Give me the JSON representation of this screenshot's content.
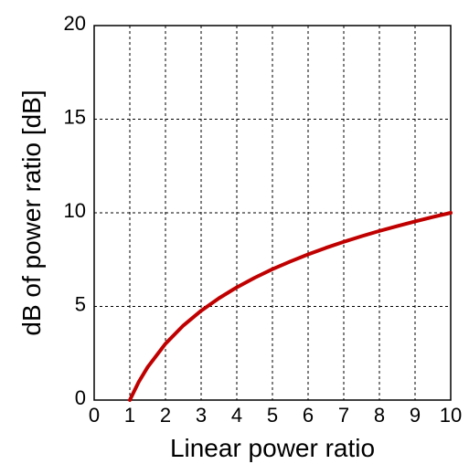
{
  "chart_data": {
    "type": "line",
    "title": "",
    "xlabel": "Linear power ratio",
    "ylabel": "dB of power ratio [dB]",
    "xlim": [
      0,
      10
    ],
    "ylim": [
      0,
      20
    ],
    "x_ticks": [
      "0",
      "1",
      "2",
      "3",
      "4",
      "5",
      "6",
      "7",
      "8",
      "9",
      "10"
    ],
    "y_ticks": [
      "0",
      "5",
      "10",
      "15",
      "20"
    ],
    "grid": true,
    "series": [
      {
        "color": "#c00000",
        "x": [
          1,
          1.25,
          1.5,
          2,
          2.5,
          3,
          3.5,
          4,
          4.5,
          5,
          5.5,
          6,
          6.5,
          7,
          7.5,
          8,
          8.5,
          9,
          9.5,
          10
        ],
        "y": [
          0,
          0.97,
          1.76,
          3.01,
          3.98,
          4.77,
          5.44,
          6.02,
          6.53,
          6.99,
          7.4,
          7.78,
          8.13,
          8.45,
          8.75,
          9.03,
          9.29,
          9.54,
          9.78,
          10
        ]
      }
    ]
  }
}
